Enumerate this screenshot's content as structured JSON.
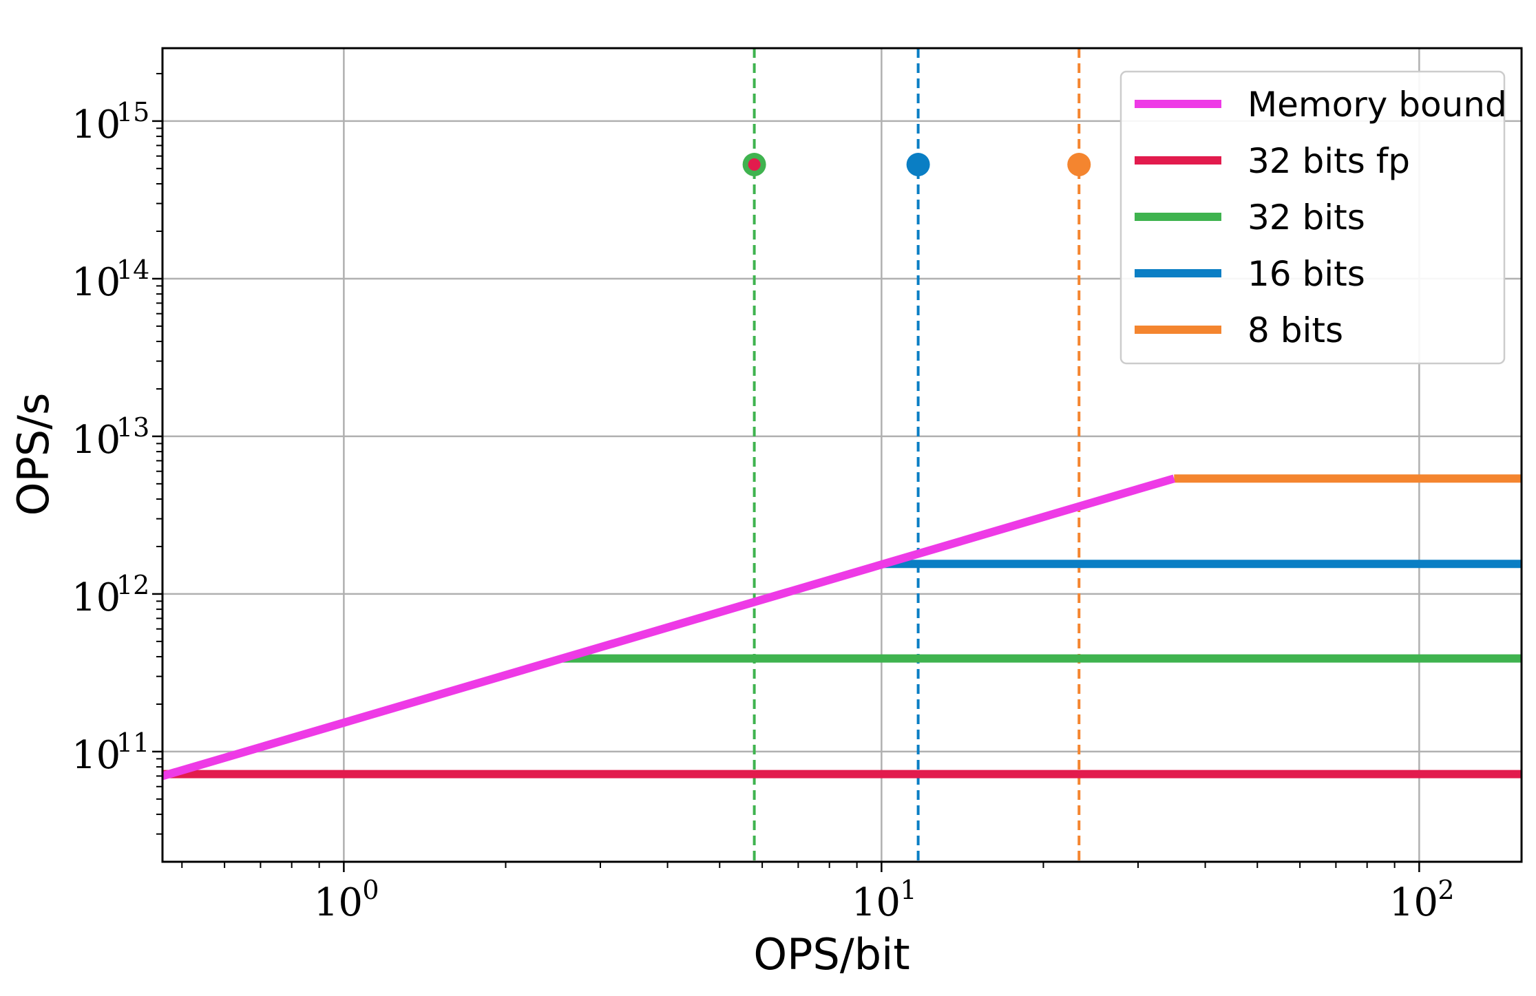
{
  "chart_data": {
    "type": "line",
    "xlabel": "OPS/bit",
    "ylabel": "OPS/s",
    "xscale": "log",
    "yscale": "log",
    "xlim": [
      0.46,
      155
    ],
    "ylim": [
      20000000000.0,
      2900000000000000.0
    ],
    "grid": true,
    "legend_position": "top-right",
    "x_ticks": [
      {
        "value": 1,
        "base": "10",
        "exp": "0"
      },
      {
        "value": 10,
        "base": "10",
        "exp": "1"
      },
      {
        "value": 100,
        "base": "10",
        "exp": "2"
      }
    ],
    "y_ticks": [
      {
        "value": 100000000000.0,
        "base": "10",
        "exp": "11"
      },
      {
        "value": 1000000000000.0,
        "base": "10",
        "exp": "12"
      },
      {
        "value": 10000000000000.0,
        "base": "10",
        "exp": "13"
      },
      {
        "value": 100000000000000.0,
        "base": "10",
        "exp": "14"
      },
      {
        "value": 1000000000000000.0,
        "base": "10",
        "exp": "15"
      }
    ],
    "series": [
      {
        "name": "Memory bound",
        "color": "#ee3ae6",
        "x": [
          0.46,
          35
        ],
        "y": [
          70000000000.0,
          5400000000000.0
        ]
      },
      {
        "name": "32 bits fp",
        "color": "#e21b4d",
        "x": [
          0.46,
          155
        ],
        "y": [
          72000000000.0,
          72000000000.0
        ]
      },
      {
        "name": "32 bits",
        "color": "#3fb34f",
        "x": [
          2.55,
          155
        ],
        "y": [
          390000000000.0,
          390000000000.0
        ]
      },
      {
        "name": "16 bits",
        "color": "#0a7ec4",
        "x": [
          10.1,
          155
        ],
        "y": [
          1550000000000.0,
          1550000000000.0
        ]
      },
      {
        "name": "8 bits",
        "color": "#f4852f",
        "x": [
          35,
          155
        ],
        "y": [
          5400000000000.0,
          5400000000000.0
        ]
      }
    ],
    "vlines": [
      {
        "x": 5.8,
        "color": "#3fb34f"
      },
      {
        "x": 11.7,
        "color": "#0a7ec4"
      },
      {
        "x": 23.3,
        "color": "#f4852f"
      }
    ],
    "points": [
      {
        "x": 5.8,
        "y": 530000000000000.0,
        "color": "#e21b4d",
        "edge": "#3fb34f"
      },
      {
        "x": 11.7,
        "y": 530000000000000.0,
        "color": "#0a7ec4"
      },
      {
        "x": 23.3,
        "y": 530000000000000.0,
        "color": "#f4852f"
      }
    ]
  }
}
